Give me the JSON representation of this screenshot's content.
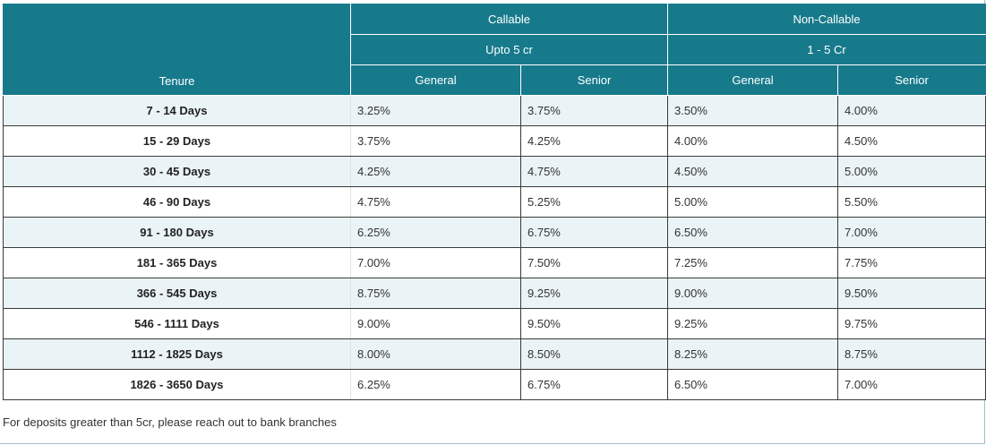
{
  "header": {
    "tenure_label": "Tenure",
    "group_callable": "Callable",
    "group_non_callable": "Non-Callable",
    "sub_callable": "Upto 5 cr",
    "sub_non_callable": "1 - 5 Cr",
    "col_general_1": "General",
    "col_senior_1": "Senior",
    "col_general_2": "General",
    "col_senior_2": "Senior"
  },
  "rows": [
    {
      "tenure": "7 - 14 Days",
      "c_general": "3.25%",
      "c_senior": "3.75%",
      "nc_general": "3.50%",
      "nc_senior": "4.00%"
    },
    {
      "tenure": "15 - 29 Days",
      "c_general": "3.75%",
      "c_senior": "4.25%",
      "nc_general": "4.00%",
      "nc_senior": "4.50%"
    },
    {
      "tenure": "30 - 45 Days",
      "c_general": "4.25%",
      "c_senior": "4.75%",
      "nc_general": "4.50%",
      "nc_senior": "5.00%"
    },
    {
      "tenure": "46 - 90 Days",
      "c_general": "4.75%",
      "c_senior": "5.25%",
      "nc_general": "5.00%",
      "nc_senior": "5.50%"
    },
    {
      "tenure": "91 - 180 Days",
      "c_general": "6.25%",
      "c_senior": "6.75%",
      "nc_general": "6.50%",
      "nc_senior": "7.00%"
    },
    {
      "tenure": "181 - 365 Days",
      "c_general": "7.00%",
      "c_senior": "7.50%",
      "nc_general": "7.25%",
      "nc_senior": "7.75%"
    },
    {
      "tenure": "366 - 545 Days",
      "c_general": "8.75%",
      "c_senior": "9.25%",
      "nc_general": "9.00%",
      "nc_senior": "9.50%"
    },
    {
      "tenure": "546 - 1111 Days",
      "c_general": "9.00%",
      "c_senior": "9.50%",
      "nc_general": "9.25%",
      "nc_senior": "9.75%"
    },
    {
      "tenure": "1112 - 1825 Days",
      "c_general": "8.00%",
      "c_senior": "8.50%",
      "nc_general": "8.25%",
      "nc_senior": "8.75%"
    },
    {
      "tenure": "1826 - 3650 Days",
      "c_general": "6.25%",
      "c_senior": "6.75%",
      "nc_general": "6.50%",
      "nc_senior": "7.00%"
    }
  ],
  "footnote": "For deposits greater than 5cr, please reach out to bank branches",
  "colors": {
    "header_bg": "#177a8b",
    "row_alt_bg": "#eaf3f5"
  }
}
